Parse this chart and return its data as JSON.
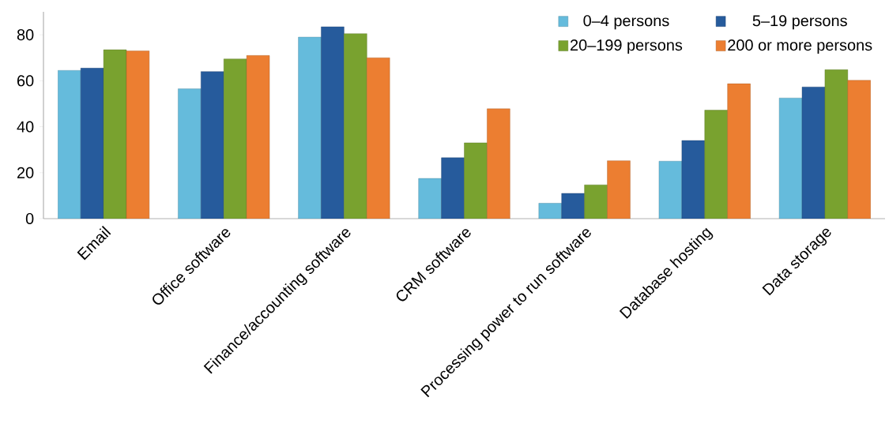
{
  "chart_data": {
    "type": "bar",
    "categories": [
      "Email",
      "Office software",
      "Finance/accounting software",
      "CRM software",
      "Processing power to run software",
      "Database hosting",
      "Data storage"
    ],
    "series": [
      {
        "name": "0–4 persons",
        "color": "#65bbdc",
        "values": [
          64.5,
          56.5,
          79,
          17.5,
          6.7,
          25,
          52.5
        ]
      },
      {
        "name": "5–19 persons",
        "color": "#265b9c",
        "values": [
          65.5,
          64,
          83.5,
          26.5,
          11,
          34,
          57.3
        ]
      },
      {
        "name": "20–199 persons",
        "color": "#79a22f",
        "values": [
          73.5,
          69.5,
          80.5,
          33,
          14.7,
          47.2,
          64.8
        ]
      },
      {
        "name": "200 or more persons",
        "color": "#ec7e31",
        "values": [
          73,
          71,
          70,
          47.8,
          25.2,
          58.7,
          60.2
        ]
      }
    ],
    "ylim": [
      0,
      90
    ],
    "yticks": [
      0,
      20,
      40,
      60,
      80
    ],
    "grid": false,
    "legend": "top right"
  }
}
